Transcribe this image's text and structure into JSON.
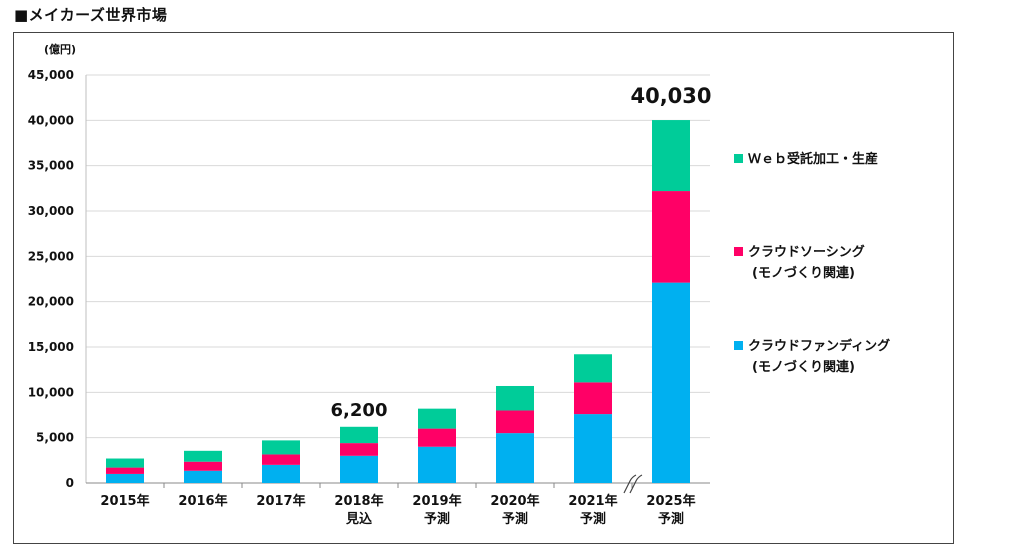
{
  "heading": "■メイカーズ世界市場",
  "chart_data": {
    "type": "bar",
    "stacked": true,
    "unit_label": "(億円)",
    "categories": [
      [
        "2015年"
      ],
      [
        "2016年"
      ],
      [
        "2017年"
      ],
      [
        "2018年",
        "見込"
      ],
      [
        "2019年",
        "予測"
      ],
      [
        "2020年",
        "予測"
      ],
      [
        "2021年",
        "予測"
      ],
      [
        "2025年",
        "予測"
      ]
    ],
    "series": [
      {
        "name": "クラウドファンディング",
        "name_line2": "(モノづくり関連)",
        "color": "#00b0f0",
        "values": [
          1000,
          1350,
          2000,
          3000,
          4000,
          5500,
          7600,
          22100
        ]
      },
      {
        "name": "クラウドソーシング",
        "name_line2": "(モノづくり関連)",
        "color": "#ff0066",
        "values": [
          700,
          1000,
          1150,
          1400,
          2000,
          2500,
          3500,
          10100
        ]
      },
      {
        "name": "Ｗｅｂ受託加工・生産",
        "name_line2": "",
        "color": "#00cc99",
        "values": [
          1000,
          1200,
          1550,
          1800,
          2200,
          2700,
          3100,
          7830
        ]
      }
    ],
    "data_labels": [
      {
        "category_index": 3,
        "text": "6,200"
      },
      {
        "category_index": 7,
        "text": "40,030"
      }
    ],
    "y_ticks": [
      "0",
      "5,000",
      "10,000",
      "15,000",
      "20,000",
      "25,000",
      "30,000",
      "35,000",
      "40,000",
      "45,000"
    ],
    "ylim": [
      0,
      45000
    ],
    "axis_break_between": [
      6,
      7
    ],
    "legend_position": "right"
  }
}
